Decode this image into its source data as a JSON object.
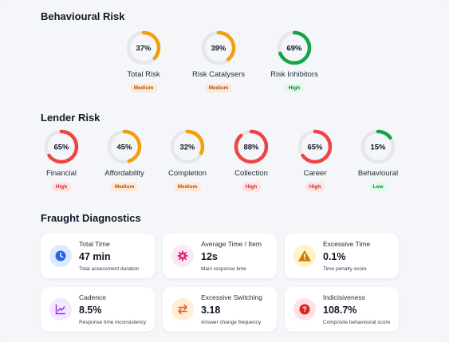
{
  "sections": {
    "behavioural_title": "Behavioural Risk",
    "lender_title": "Lender Risk",
    "diagnostics_title": "Fraught Diagnostics"
  },
  "colors": {
    "track": "#e5e7eb",
    "orange": "#f59e0b",
    "red": "#ef4444",
    "green": "#16a34a"
  },
  "behavioural": [
    {
      "percent_text": "37%",
      "value": 0.37,
      "color": "orange",
      "label": "Total Risk",
      "badge": "Medium",
      "badge_style": "medium"
    },
    {
      "percent_text": "39%",
      "value": 0.39,
      "color": "orange",
      "label": "Risk Catalysers",
      "badge": "Medium",
      "badge_style": "medium"
    },
    {
      "percent_text": "69%",
      "value": 0.69,
      "color": "green",
      "label": "Risk Inhibitors",
      "badge": "High",
      "badge_style": "high-green"
    }
  ],
  "lender": [
    {
      "percent_text": "65%",
      "value": 0.65,
      "color": "red",
      "label": "Financial",
      "badge": "High",
      "badge_style": "high-red"
    },
    {
      "percent_text": "45%",
      "value": 0.45,
      "color": "orange",
      "label": "Affordability",
      "badge": "Medium",
      "badge_style": "medium"
    },
    {
      "percent_text": "32%",
      "value": 0.32,
      "color": "orange",
      "label": "Completion",
      "badge": "Medium",
      "badge_style": "medium"
    },
    {
      "percent_text": "88%",
      "value": 0.88,
      "color": "red",
      "label": "Collection",
      "badge": "High",
      "badge_style": "high-red"
    },
    {
      "percent_text": "65%",
      "value": 0.65,
      "color": "red",
      "label": "Career",
      "badge": "High",
      "badge_style": "high-red"
    },
    {
      "percent_text": "15%",
      "value": 0.15,
      "color": "green",
      "label": "Behavioural",
      "badge": "Low",
      "badge_style": "low"
    }
  ],
  "diagnostics": [
    {
      "icon": "clock-icon",
      "icon_bg": "#dbeafe",
      "icon_fg": "#2563eb",
      "title": "Total Time",
      "value": "47 min",
      "sub": "Total assessment duration"
    },
    {
      "icon": "gear-icon",
      "icon_bg": "#fce7f3",
      "icon_fg": "#db2777",
      "title": "Average Time / Item",
      "value": "12s",
      "sub": "Main response time"
    },
    {
      "icon": "warning-icon",
      "icon_bg": "#fef3c7",
      "icon_fg": "#d97706",
      "title": "Excessive Time",
      "value": "0.1%",
      "sub": "Time penalty score"
    },
    {
      "icon": "chart-icon",
      "icon_bg": "#f3e8ff",
      "icon_fg": "#9333ea",
      "title": "Cadence",
      "value": "8.5%",
      "sub": "Response time inconsistency"
    },
    {
      "icon": "swap-icon",
      "icon_bg": "#ffedd5",
      "icon_fg": "#ea580c",
      "title": "Excessive Switching",
      "value": "3.18",
      "sub": "Answer change frequency"
    },
    {
      "icon": "question-icon",
      "icon_bg": "#fee2e2",
      "icon_fg": "#dc2626",
      "title": "Indicisiveness",
      "value": "108.7%",
      "sub": "Composite behavioural score"
    }
  ]
}
